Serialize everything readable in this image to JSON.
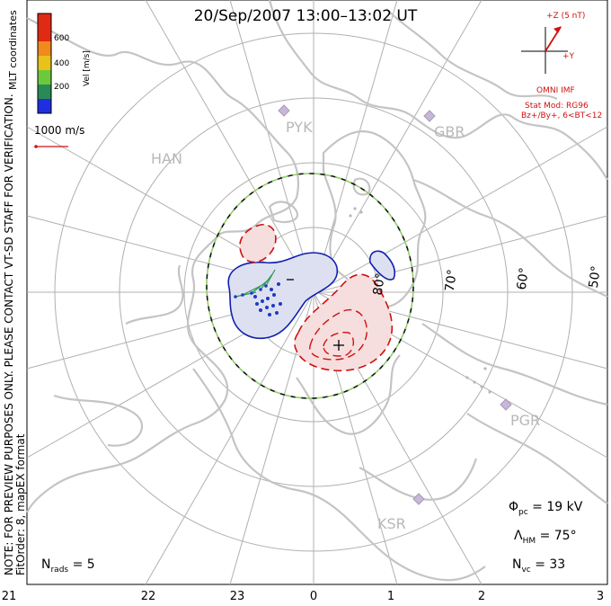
{
  "title": "20/Sep/2007 13:00–13:02 UT",
  "side_note": {
    "line1": "NOTE: FOR PREVIEW PURPOSES ONLY. PLEASE CONTACT VT-SD STAFF FOR VERIFICATION.",
    "line2": "FitOrder: 8, mapEX format"
  },
  "color_scale": {
    "title": "Vel [m/s]",
    "ticks": [
      "200",
      "400",
      "600"
    ],
    "colors": [
      "#1f2fe0",
      "#2a8a55",
      "#6cc93c",
      "#e8c21a",
      "#f08a1c",
      "#e02a14"
    ]
  },
  "coordinates_label": "MLT coordinates",
  "vector_scale_label": "1000 m/s",
  "imf": {
    "z_label": "+Z (5 nT)",
    "y_label": "+Y",
    "source": "OMNI IMF",
    "stat_mod": "Stat Mod: RG96",
    "condition": "Bz+/By+, 6<BT<12"
  },
  "stations": [
    "HAN",
    "PYK",
    "GBR",
    "PGR",
    "KSR"
  ],
  "latitudes": [
    "80°",
    "70°",
    "60°",
    "50°"
  ],
  "potential_markers": {
    "minus": "−",
    "plus": "+"
  },
  "stats": {
    "phi_pc": {
      "symbol": "Φ",
      "sub": "pc",
      "value": "= 19 kV"
    },
    "lambda_hm": {
      "symbol": "Λ",
      "sub": "HM",
      "value": "= 75°"
    },
    "n_vc": {
      "symbol": "N",
      "sub": "vc",
      "value": "= 33"
    },
    "n_rads": {
      "symbol": "N",
      "sub": "rads",
      "value": "= 5"
    }
  },
  "mlt_labels": [
    "21",
    "22",
    "23",
    "0",
    "1",
    "2",
    "3"
  ]
}
